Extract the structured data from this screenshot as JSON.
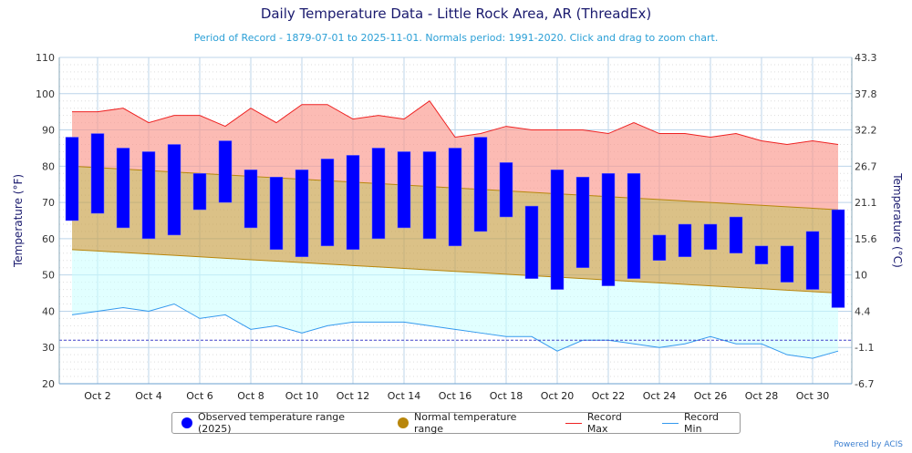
{
  "title": "Daily Temperature Data - Little Rock Area, AR (ThreadEx)",
  "subtitle": "Period of Record - 1879-07-01 to 2025-11-01. Normals period: 1991-2020. Click and drag to zoom chart.",
  "credit": "Powered by ACIS",
  "chart_data": {
    "type": "bar",
    "ylabel": "Temperature (°F)",
    "ylabel_right": "Temperature (°C)",
    "ylim": [
      20,
      110
    ],
    "yticks": [
      20,
      30,
      40,
      50,
      60,
      70,
      80,
      90,
      100,
      110
    ],
    "yticks_right": [
      "-6.7",
      "-1.1",
      "4.4",
      "10",
      "15.6",
      "21.1",
      "26.7",
      "32.2",
      "37.8",
      "43.3"
    ],
    "xticks": [
      "Oct 2",
      "Oct 4",
      "Oct 6",
      "Oct 8",
      "Oct 10",
      "Oct 12",
      "Oct 14",
      "Oct 16",
      "Oct 18",
      "Oct 20",
      "Oct 22",
      "Oct 24",
      "Oct 26",
      "Oct 28",
      "Oct 30"
    ],
    "days": [
      1,
      2,
      3,
      4,
      5,
      6,
      7,
      8,
      9,
      10,
      11,
      12,
      13,
      14,
      15,
      16,
      17,
      18,
      19,
      20,
      21,
      22,
      23,
      24,
      25,
      26,
      27,
      28,
      29,
      30,
      31
    ],
    "freezing_line": 32,
    "grid": true,
    "legend_placement": "bottom",
    "series": [
      {
        "name": "Observed temperature range (2025)",
        "color": "#0000ff",
        "high": [
          88,
          89,
          85,
          84,
          86,
          78,
          87,
          79,
          77,
          79,
          82,
          83,
          85,
          84,
          84,
          85,
          88,
          81,
          69,
          79,
          77,
          78,
          78,
          61,
          64,
          64,
          66,
          58,
          58,
          62,
          68
        ],
        "low": [
          65,
          67,
          63,
          60,
          61,
          68,
          70,
          63,
          57,
          55,
          58,
          57,
          60,
          63,
          60,
          58,
          62,
          66,
          49,
          46,
          52,
          47,
          49,
          54,
          55,
          57,
          56,
          53,
          48,
          46,
          41
        ]
      },
      {
        "name": "Normal temperature range",
        "color": "#b8860b",
        "high": [
          80,
          79.6,
          79.2,
          78.8,
          78.4,
          78,
          77.6,
          77.2,
          76.8,
          76.4,
          76,
          75.6,
          75.2,
          74.8,
          74.4,
          74,
          73.6,
          73.2,
          72.8,
          72.4,
          72,
          71.6,
          71.2,
          70.8,
          70.4,
          70,
          69.6,
          69.2,
          68.8,
          68.4,
          68
        ],
        "low": [
          57,
          56.6,
          56.2,
          55.8,
          55.4,
          55,
          54.6,
          54.2,
          53.8,
          53.4,
          53,
          52.6,
          52.2,
          51.8,
          51.4,
          51,
          50.6,
          50.2,
          49.8,
          49.4,
          49,
          48.6,
          48.2,
          47.8,
          47.4,
          47,
          46.6,
          46.2,
          45.8,
          45.4,
          45
        ]
      },
      {
        "name": "Record Max",
        "color": "#ee2222",
        "values": [
          95,
          95,
          96,
          92,
          94,
          94,
          91,
          96,
          92,
          97,
          97,
          93,
          94,
          93,
          98,
          88,
          89,
          91,
          90,
          90,
          90,
          89,
          92,
          89,
          89,
          88,
          89,
          87,
          86,
          87,
          86
        ]
      },
      {
        "name": "Record Min",
        "color": "#3399ee",
        "values": [
          39,
          40,
          41,
          40,
          42,
          38,
          39,
          35,
          36,
          34,
          36,
          37,
          37,
          37,
          36,
          35,
          34,
          33,
          33,
          29,
          32,
          32,
          31,
          30,
          31,
          33,
          31,
          31,
          28,
          27,
          29
        ]
      }
    ]
  }
}
